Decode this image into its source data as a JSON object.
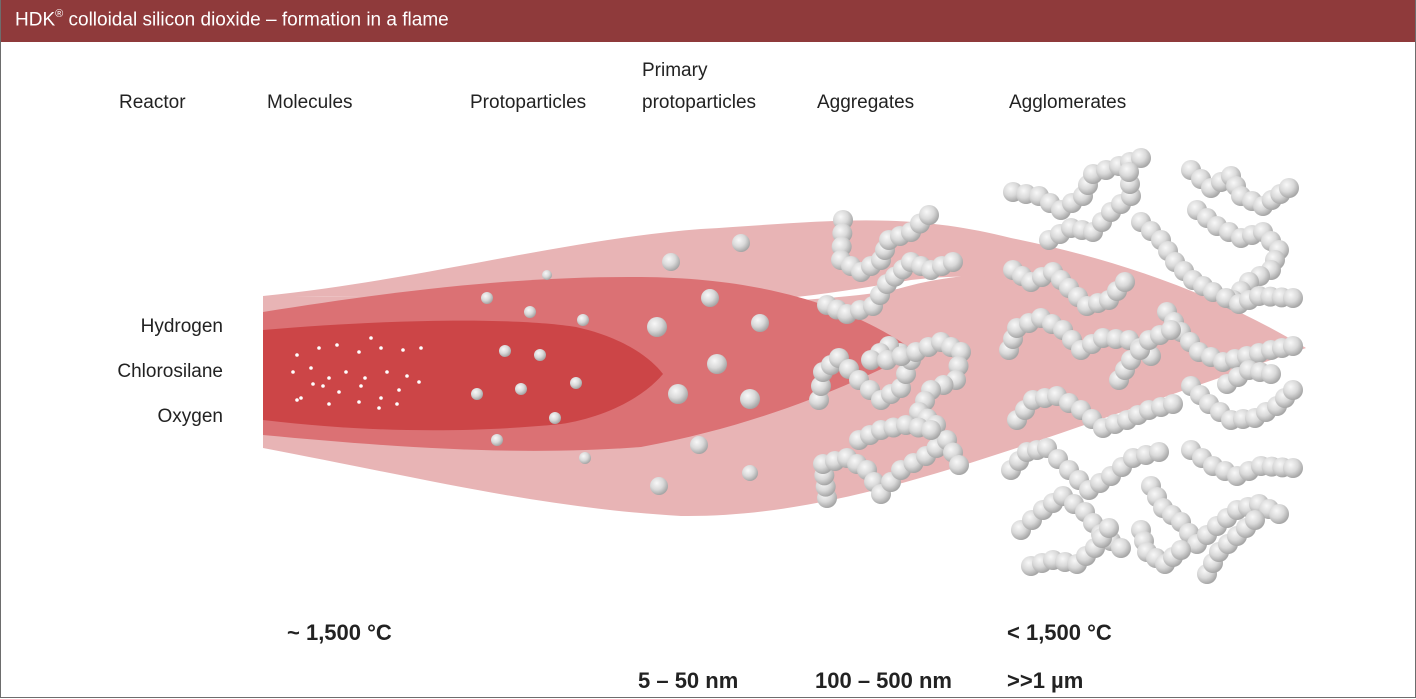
{
  "header": {
    "brand": "HDK",
    "registered_mark": "®",
    "title_rest": " colloidal silicon dioxide – formation in a flame"
  },
  "stages": {
    "reactor": "Reactor",
    "molecules": "Molecules",
    "protoparticles": "Protoparticles",
    "primary_line1": "Primary",
    "primary_line2": "protoparticles",
    "aggregates": "Aggregates",
    "agglomerates": "Agglomerates"
  },
  "inputs": {
    "hydrogen": "Hydrogen",
    "chlorosilane": "Chlorosilane",
    "oxygen": "Oxygen"
  },
  "temperatures": {
    "hot": "~ 1,500 °C",
    "cool": "< 1,500 °C"
  },
  "sizes": {
    "primary": "5 – 50 nm",
    "aggregates": "100 – 500 nm",
    "agglomerates": ">>1 µm"
  },
  "colors": {
    "header": "#8f3a3b",
    "flame_outer": "#e8b4b5",
    "flame_middle": "#db7174",
    "flame_core": "#cc4547",
    "particle_light": "#f4f4f4",
    "particle_dark": "#a9a9a9"
  }
}
